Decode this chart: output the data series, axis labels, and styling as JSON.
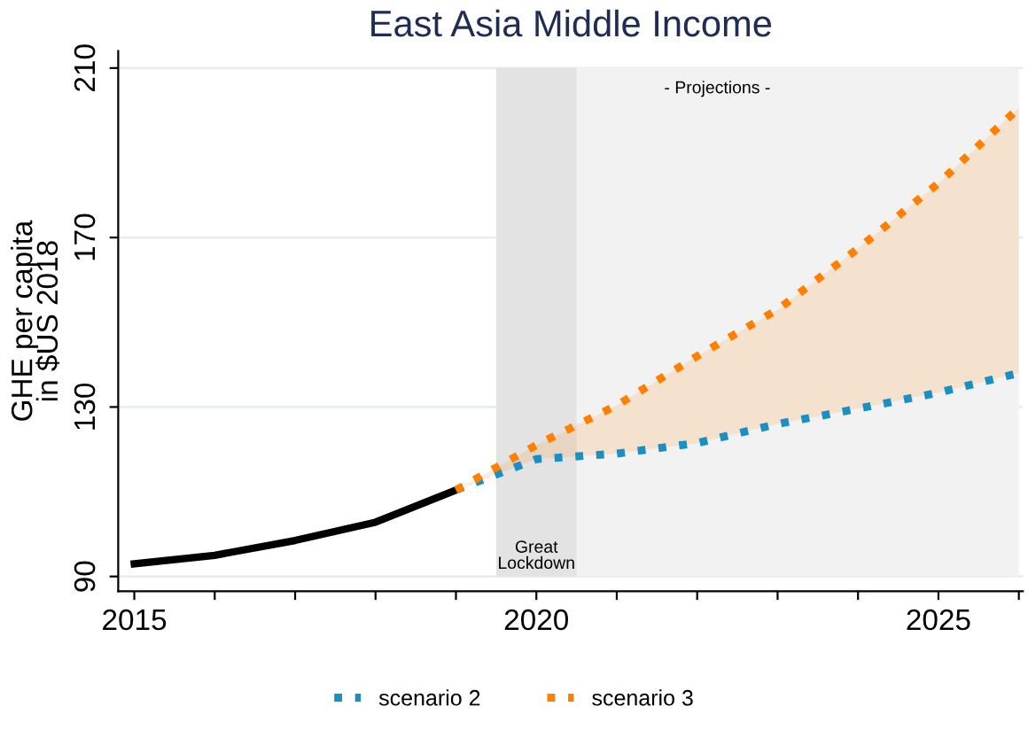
{
  "chart_data": {
    "type": "line",
    "title": "East Asia Middle Income",
    "ylabel": "GHE per capita\nin $US 2018",
    "xlim": [
      2014.8,
      2026.05
    ],
    "xticks": [
      2015,
      {
        "value": 2016,
        "label": null
      },
      {
        "value": 2017,
        "label": null
      },
      {
        "value": 2018,
        "label": null
      },
      {
        "value": 2019,
        "label": null
      },
      2020,
      {
        "value": 2021,
        "label": null
      },
      {
        "value": 2022,
        "label": null
      },
      {
        "value": 2023,
        "label": null
      },
      {
        "value": 2024,
        "label": null
      },
      2025,
      {
        "value": 2026,
        "label": null
      }
    ],
    "ylim": [
      86.5,
      214
    ],
    "yticks": [
      90,
      130,
      170,
      210
    ],
    "grid": "y",
    "legend": "bottom",
    "marker": "none",
    "series": [
      {
        "color": "#000000",
        "line_style": "solid",
        "x": [
          2015,
          2016,
          2017,
          2018,
          2019
        ],
        "values": [
          93,
          95,
          98.5,
          102.8,
          110.4
        ]
      },
      {
        "name": "scenario 2",
        "color": "#1a8fc4",
        "line_style": "dotted",
        "x": [
          2019,
          2020,
          2021,
          2022,
          2023,
          2024,
          2025,
          2026
        ],
        "values": [
          110.4,
          117.7,
          119,
          121.5,
          126,
          129.6,
          133.4,
          138
        ]
      },
      {
        "name": "scenario 3",
        "color": "#ff8000",
        "line_style": "dotted",
        "x": [
          2019,
          2020,
          2021,
          2022,
          2023,
          2024,
          2025,
          2026
        ],
        "values": [
          110.4,
          121,
          130.4,
          142,
          153,
          167.4,
          182.8,
          200.6
        ],
        "lower": [
          110.4,
          117.7,
          119,
          121.5,
          126,
          129.6,
          133.4,
          138
        ],
        "upper": [
          110.4,
          121,
          130.4,
          142,
          153,
          167.4,
          182.8,
          200.6
        ]
      }
    ],
    "bands": [
      {
        "axis": "x",
        "from": 2019.5,
        "to": 2026,
        "label": "- Projections -",
        "color": "#f2f2f2"
      },
      {
        "axis": "x",
        "from": 2019.5,
        "to": 2020.5,
        "label": "Great\nLockdown",
        "color": "#e3e3e3"
      }
    ]
  }
}
